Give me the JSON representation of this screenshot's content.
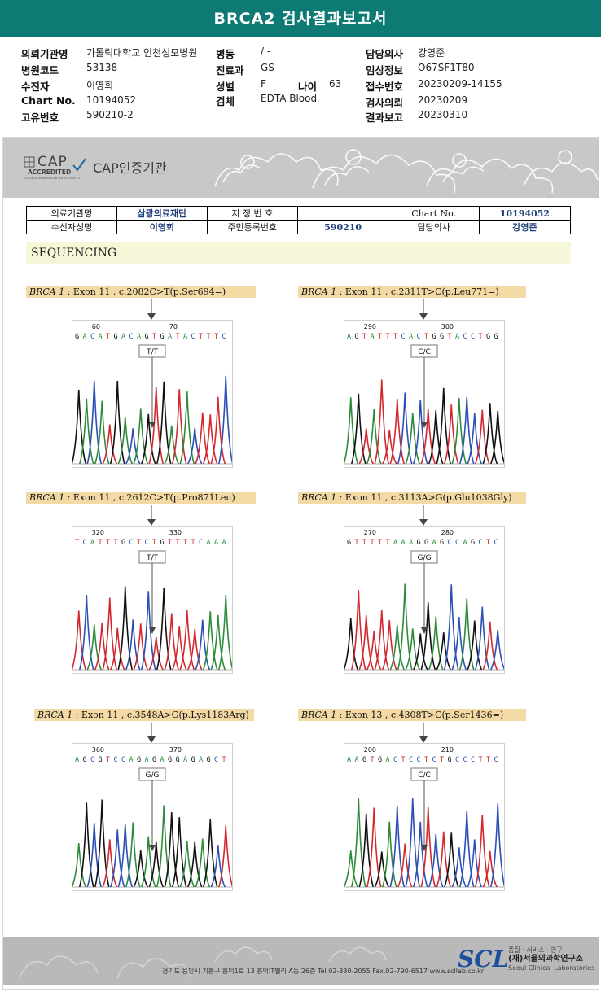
{
  "title": "BRCA2 검사결과보고서",
  "info": [
    {
      "label": "의뢰기관명",
      "value": "가톨릭대학교 인천성모병원"
    },
    {
      "label": "병원코드",
      "value": "53138"
    },
    {
      "label": "수진자",
      "value": "이영희"
    },
    {
      "label": "Chart No.",
      "value": "10194052"
    },
    {
      "label": "고유번호",
      "value": "590210-2"
    },
    {
      "label": "병동",
      "value": "/ -"
    },
    {
      "label": "진료과",
      "value": "GS"
    },
    {
      "label": "성별",
      "value": "F"
    },
    {
      "label": "검체",
      "value": "EDTA Blood"
    },
    {
      "label": "나이",
      "value": "63"
    },
    {
      "label": "담당의사",
      "value": "강영준"
    },
    {
      "label": "임상정보",
      "value": "O67SF1T80"
    },
    {
      "label": "접수번호",
      "value": "20230209-14155"
    },
    {
      "label": "검사의뢰",
      "value": "20230209"
    },
    {
      "label": "결과보고",
      "value": "20230310"
    }
  ],
  "cap": {
    "logo_top": "CAP",
    "logo_bottom": "ACCREDITED",
    "logo_small": "COLLEGE of AMERICAN PATHOLOGISTS",
    "text": "CAP인증기관"
  },
  "patient_table": {
    "r1": [
      "의료기관명",
      "삼광의료재단",
      "지 정 번 호",
      "",
      "Chart No.",
      "10194052"
    ],
    "r2": [
      "수신자성명",
      "이영희",
      "주민등록번호",
      "590210",
      "담당의사",
      "강영준"
    ]
  },
  "section_title": "SEQUENCING",
  "panels": [
    {
      "gene": "BRCA 1",
      "text": " : Exon 11 , c.2082C>T(p.Ser694=)",
      "seq": "GACATGACAGTGATACTTTC",
      "pos1": "60",
      "pos2": "70",
      "call": "T/T"
    },
    {
      "gene": "BRCA 1",
      "text": " : Exon 11 , c.2311T>C(p.Leu771=)",
      "seq": "AGTATTTCACTGGTACCTGG",
      "pos1": "290",
      "pos2": "300",
      "call": "C/C"
    },
    {
      "gene": "BRCA 1",
      "text": " : Exon 11 , c.2612C>T(p.Pro871Leu)",
      "seq": "TCATTTGCTCTGTTTTCAAA",
      "pos1": "320",
      "pos2": "330",
      "call": "T/T"
    },
    {
      "gene": "BRCA 1",
      "text": " : Exon 11 , c.3113A>G(p.Glu1038Gly)",
      "seq": "GTTTTTAAAGGAGCCAGCTC",
      "pos1": "270",
      "pos2": "280",
      "call": "G/G"
    },
    {
      "gene": "BRCA 1",
      "text": " : Exon 11 , c.3548A>G(p.Lys1183Arg)",
      "seq": "AGCGTCCAGAGAGGAGAGCT",
      "pos1": "360",
      "pos2": "370",
      "call": "G/G"
    },
    {
      "gene": "BRCA 1",
      "text": " : Exon 13 , c.4308T>C(p.Ser1436=)",
      "seq": "AAGTGACTCCTCTGCCCTTC",
      "pos1": "200",
      "pos2": "210",
      "call": "C/C"
    }
  ],
  "footer": {
    "address": "경기도 용인시 기흥구 흥덕1로 13 흥덕IT밸리 A동 26층  Tel.02-330-2055  Fax.02-790-6517  www.scllab.co.kr",
    "logo": "SCL",
    "slogan": "품질 · 서비스 · 연구",
    "org_ko": "(재)서울의과학연구소",
    "org_en": "Seoul Clinical Laboratories"
  },
  "colors": {
    "header": "#0e7a74",
    "A": "#2e8b3a",
    "C": "#2a4fb5",
    "G": "#111111",
    "T": "#d2282e"
  }
}
